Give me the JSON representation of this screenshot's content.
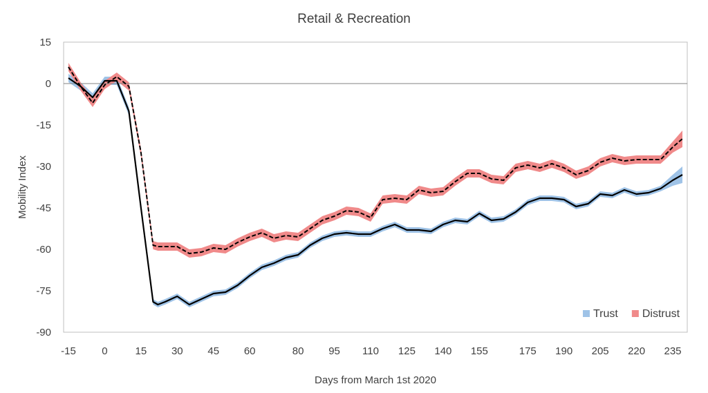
{
  "chart_data": {
    "type": "line",
    "title": "Retail & Recreation",
    "xlabel": "Days from March 1st 2020",
    "ylabel": "Mobility Index",
    "xlim": [
      -17,
      241
    ],
    "ylim": [
      -90,
      15
    ],
    "x_ticks": [
      -15,
      0,
      15,
      30,
      45,
      60,
      80,
      95,
      110,
      125,
      140,
      155,
      175,
      190,
      205,
      220,
      235
    ],
    "y_ticks": [
      15,
      0,
      -15,
      -30,
      -45,
      -60,
      -75,
      -90
    ],
    "legend_position": "bottom-right",
    "grid": false,
    "zero_line": true,
    "colors": {
      "trust_band": "#9fc3e7",
      "distrust_band": "#f08a8a",
      "line": "#000000",
      "axis_box": "#bfbfbf"
    },
    "legend": [
      {
        "label": "Trust",
        "color": "#9fc3e7"
      },
      {
        "label": "Distrust",
        "color": "#f08a8a"
      }
    ],
    "series": [
      {
        "name": "Trust",
        "style": "solid",
        "x": [
          -15,
          -10,
          -5,
          0,
          5,
          10,
          15,
          20,
          22,
          25,
          30,
          35,
          40,
          45,
          50,
          55,
          60,
          65,
          70,
          75,
          80,
          85,
          90,
          95,
          100,
          105,
          110,
          115,
          120,
          125,
          130,
          135,
          140,
          145,
          150,
          155,
          160,
          165,
          170,
          175,
          180,
          185,
          190,
          195,
          200,
          205,
          210,
          215,
          220,
          225,
          230,
          235,
          239
        ],
        "y": [
          2,
          -1,
          -5,
          1,
          1,
          -10,
          -45,
          -79,
          -80,
          -79,
          -77,
          -80,
          -78,
          -76,
          -75.5,
          -73,
          -69.5,
          -66.5,
          -65,
          -63,
          -62,
          -58.5,
          -56,
          -54.5,
          -54,
          -54.5,
          -54.5,
          -52.5,
          -51,
          -53,
          -53,
          -53.5,
          -51,
          -49.5,
          -50,
          -47,
          -49.5,
          -49,
          -46.5,
          -43,
          -41.5,
          -41.5,
          -42,
          -44.5,
          -43.5,
          -40,
          -40.5,
          -38.5,
          -40,
          -39.5,
          -38,
          -35,
          -33
        ],
        "band_halfwidth": [
          1.5,
          1.5,
          1.5,
          1.5,
          1.5,
          1.5,
          1.5,
          1,
          1,
          1,
          1,
          1,
          1,
          1,
          1,
          1,
          1,
          1,
          1,
          1,
          1,
          1,
          1,
          1,
          1,
          1,
          1,
          1,
          1,
          1,
          1,
          1,
          1,
          1,
          1,
          1,
          1,
          1,
          1,
          1,
          1,
          1,
          1,
          1,
          1,
          1,
          1,
          1,
          1,
          1,
          1,
          2,
          3
        ]
      },
      {
        "name": "Distrust",
        "style": "dashed",
        "x": [
          -15,
          -10,
          -5,
          0,
          5,
          10,
          15,
          20,
          22,
          25,
          30,
          35,
          40,
          45,
          50,
          55,
          60,
          65,
          70,
          75,
          80,
          85,
          90,
          95,
          100,
          105,
          110,
          115,
          120,
          125,
          130,
          135,
          140,
          145,
          150,
          155,
          160,
          165,
          170,
          175,
          180,
          185,
          190,
          195,
          200,
          205,
          210,
          215,
          220,
          225,
          230,
          235,
          239
        ],
        "y": [
          6,
          -1,
          -7,
          -0.5,
          2.5,
          -1,
          -25,
          -58.5,
          -59,
          -59,
          -59,
          -61.5,
          -61,
          -59.5,
          -60,
          -57.5,
          -55.5,
          -54,
          -56,
          -55,
          -55.5,
          -52.5,
          -49.5,
          -48,
          -46,
          -46.5,
          -48.5,
          -42,
          -41.5,
          -42,
          -38.5,
          -39.5,
          -39,
          -35.5,
          -32.5,
          -32.5,
          -34.5,
          -35,
          -30.5,
          -29.5,
          -30.5,
          -29,
          -30.5,
          -33,
          -31.5,
          -28.5,
          -27,
          -28,
          -27.5,
          -27.5,
          -27.5,
          -23,
          -20
        ],
        "band_halfwidth": [
          1.5,
          1.5,
          1.5,
          1.5,
          1.5,
          1.5,
          1.5,
          1.5,
          1.5,
          1.5,
          1.5,
          1.5,
          1.5,
          1.5,
          1.5,
          1.5,
          1.5,
          1.5,
          1.5,
          1.5,
          1.5,
          1.5,
          1.5,
          1.5,
          1.5,
          1.5,
          1.5,
          1.5,
          1.5,
          1.5,
          1.5,
          1.5,
          1.5,
          1.5,
          1.5,
          1.5,
          1.5,
          1.5,
          1.5,
          1.5,
          1.5,
          1.5,
          1.5,
          1.5,
          1.5,
          1.5,
          1.5,
          1.5,
          1.5,
          1.5,
          1.5,
          2,
          3
        ]
      }
    ]
  }
}
